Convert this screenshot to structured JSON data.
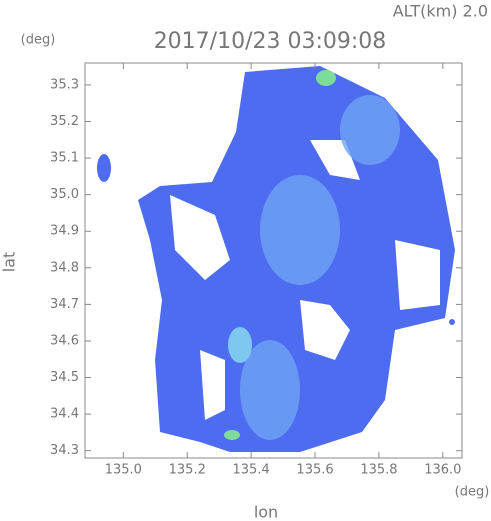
{
  "chart_data": {
    "type": "map",
    "title": "2017/10/23 03:09:08",
    "subtitle": "ALT(km) 2.0",
    "x_label": "lon",
    "y_label": "lat",
    "x_unit": "(deg)",
    "y_unit": "(deg)",
    "xlim": [
      134.88,
      136.06
    ],
    "ylim": [
      34.28,
      35.36
    ],
    "xticks": [
      {
        "value": 135,
        "label": "135.0"
      },
      135.2,
      135.4,
      135.6,
      135.8,
      {
        "value": 136,
        "label": "136.0"
      }
    ],
    "yticks": [
      34.3,
      34.4,
      34.5,
      34.6,
      34.7,
      34.8,
      34.9,
      {
        "value": 35,
        "label": "35.0"
      },
      35.1,
      35.2,
      35.3
    ]
  }
}
